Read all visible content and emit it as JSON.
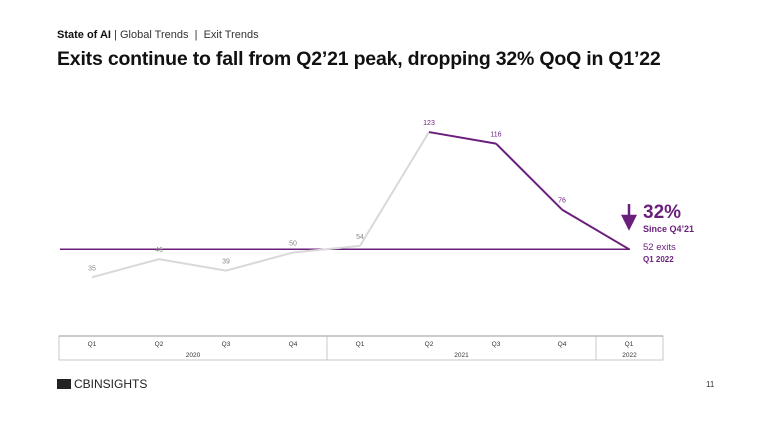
{
  "breadcrumb": {
    "section": "State of AI",
    "sub1": "Global Trends",
    "sub2": "Exit Trends"
  },
  "title": "Exits continue to fall from Q2’21 peak, dropping 32% QoQ in Q1’22",
  "callout": {
    "pct": "32%",
    "since": "Since Q4’21",
    "exits": "52 exits",
    "period": "Q1 2022",
    "icon": "arrow-down-icon"
  },
  "footer": {
    "logo": "CBINSIGHTS",
    "page": "11"
  },
  "colors": {
    "accent": "#6b1f7c",
    "past": "#d9d9d9"
  },
  "chart_data": {
    "type": "line",
    "categories": [
      "Q1",
      "Q2",
      "Q3",
      "Q4",
      "Q1",
      "Q2",
      "Q3",
      "Q4",
      "Q1"
    ],
    "years": [
      {
        "label": "2020",
        "span": 4
      },
      {
        "label": "2021",
        "span": 4
      },
      {
        "label": "2022",
        "span": 1
      }
    ],
    "values": [
      35,
      46,
      39,
      50,
      54,
      123,
      116,
      76,
      52
    ],
    "highlight_from_index": 5,
    "reference_line": 52,
    "ylim": [
      0,
      140
    ]
  }
}
